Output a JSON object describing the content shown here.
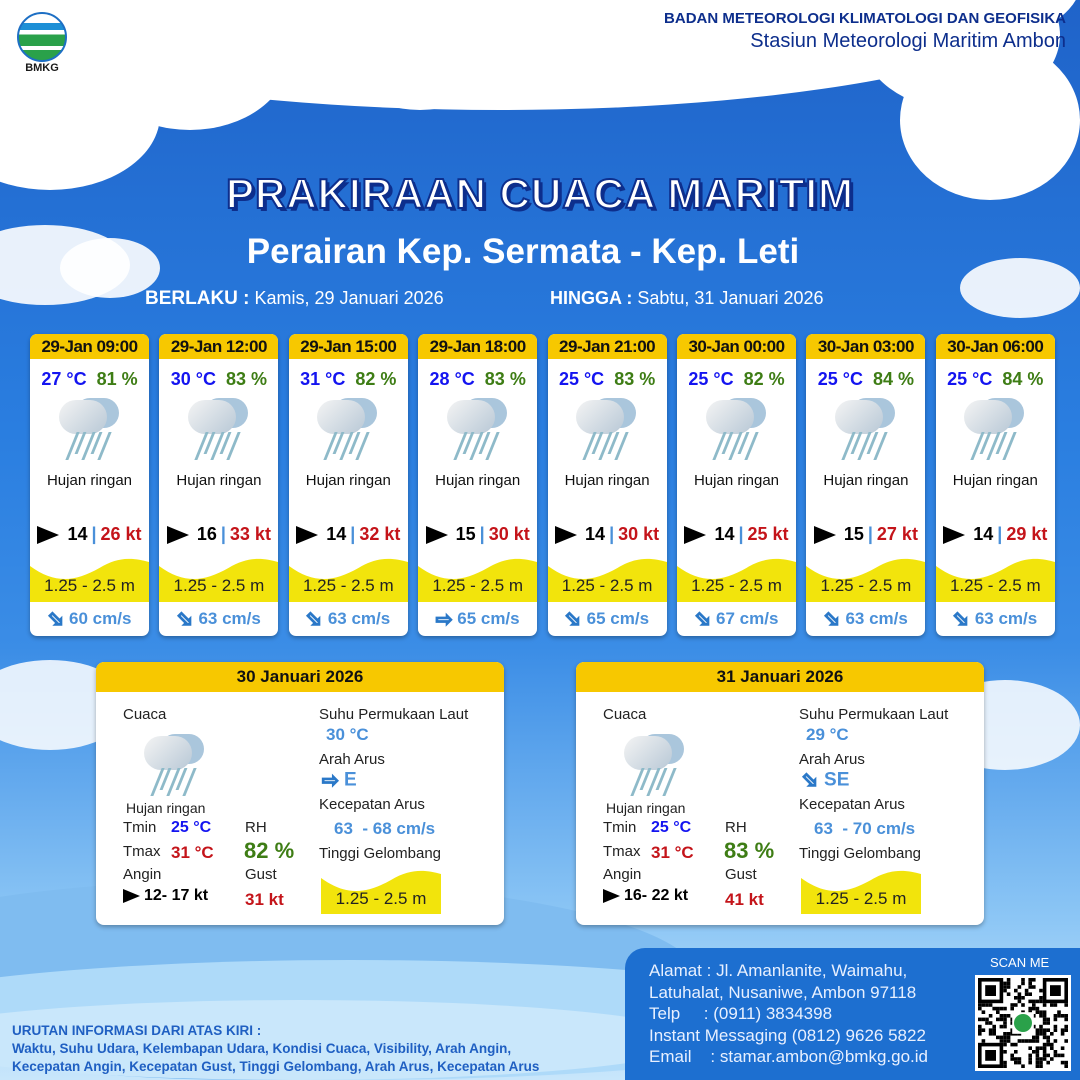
{
  "header": {
    "org_line1": "BADAN METEOROLOGI KLIMATOLOGI DAN GEOFISIKA",
    "org_line2": "Stasiun Meteorologi Maritim Ambon",
    "logo_text": "BMKG"
  },
  "title": "PRAKIRAAN CUACA MARITIM",
  "subtitle": "Perairan Kep. Sermata - Kep. Leti",
  "validity": {
    "from_label": "BERLAKU :",
    "from": "Kamis, 29 Januari 2026",
    "to_label": "HINGGA :",
    "to": "Sabtu, 31 Januari 2026"
  },
  "forecasts": [
    {
      "time": "29-Jan 09:00",
      "temp": "27 °C",
      "rh": "81 %",
      "icon": "light-rain-icon",
      "cond": "Hujan ringan",
      "wind": "14",
      "gust": "26 kt",
      "wave": "1.25 - 2.5 m",
      "current_dir": "SE",
      "current": "60 cm/s"
    },
    {
      "time": "29-Jan 12:00",
      "temp": "30 °C",
      "rh": "83 %",
      "icon": "light-rain-icon",
      "cond": "Hujan ringan",
      "wind": "16",
      "gust": "33 kt",
      "wave": "1.25 - 2.5 m",
      "current_dir": "SE",
      "current": "63 cm/s"
    },
    {
      "time": "29-Jan 15:00",
      "temp": "31 °C",
      "rh": "82 %",
      "icon": "light-rain-icon",
      "cond": "Hujan ringan",
      "wind": "14",
      "gust": "32 kt",
      "wave": "1.25 - 2.5 m",
      "current_dir": "SE",
      "current": "63 cm/s"
    },
    {
      "time": "29-Jan 18:00",
      "temp": "28 °C",
      "rh": "83 %",
      "icon": "light-rain-icon",
      "cond": "Hujan ringan",
      "wind": "15",
      "gust": "30 kt",
      "wave": "1.25 - 2.5 m",
      "current_dir": "E",
      "current": "65 cm/s"
    },
    {
      "time": "29-Jan 21:00",
      "temp": "25 °C",
      "rh": "83 %",
      "icon": "light-rain-icon",
      "cond": "Hujan ringan",
      "wind": "14",
      "gust": "30 kt",
      "wave": "1.25 - 2.5 m",
      "current_dir": "SE",
      "current": "65 cm/s"
    },
    {
      "time": "30-Jan 00:00",
      "temp": "25 °C",
      "rh": "82 %",
      "icon": "light-rain-icon",
      "cond": "Hujan ringan",
      "wind": "14",
      "gust": "25 kt",
      "wave": "1.25 - 2.5 m",
      "current_dir": "SE",
      "current": "67 cm/s"
    },
    {
      "time": "30-Jan 03:00",
      "temp": "25 °C",
      "rh": "84 %",
      "icon": "light-rain-icon",
      "cond": "Hujan ringan",
      "wind": "15",
      "gust": "27 kt",
      "wave": "1.25 - 2.5 m",
      "current_dir": "SE",
      "current": "63 cm/s"
    },
    {
      "time": "30-Jan 06:00",
      "temp": "25 °C",
      "rh": "84 %",
      "icon": "light-rain-icon",
      "cond": "Hujan ringan",
      "wind": "14",
      "gust": "29 kt",
      "wave": "1.25 - 2.5 m",
      "current_dir": "SE",
      "current": "63 cm/s"
    }
  ],
  "labels": {
    "weather": "Cuaca",
    "sst": "Suhu Permukaan Laut",
    "current_dir": "Arah Arus",
    "current_speed": "Kecepatan Arus",
    "wave": "Tinggi Gelombang",
    "tmin": "Tmin",
    "tmax": "Tmax",
    "rh": "RH",
    "wind": "Angin",
    "gust": "Gust"
  },
  "daily": [
    {
      "date": "30 Januari 2026",
      "cond": "Hujan ringan",
      "tmin": "25 °C",
      "tmax": "31 °C",
      "rh": "82 %",
      "wind": "12- 17 kt",
      "gust": "31 kt",
      "sst": "30 °C",
      "current_dir": "E",
      "current_speed": "63  - 68 cm/s",
      "wave": "1.25 - 2.5 m"
    },
    {
      "date": "31 Januari 2026",
      "cond": "Hujan ringan",
      "tmin": "25 °C",
      "tmax": "31 °C",
      "rh": "83 %",
      "wind": "16- 22 kt",
      "gust": "41 kt",
      "sst": "29 °C",
      "current_dir": "SE",
      "current_speed": "63  - 70 cm/s",
      "wave": "1.25 - 2.5 m"
    }
  ],
  "legend": {
    "title": "URUTAN INFORMASI DARI ATAS KIRI :",
    "line1": "Waktu, Suhu Udara, Kelembapan Udara, Kondisi Cuaca, Visibility, Arah Angin,",
    "line2": "Kecepatan Angin, Kecepatan Gust, Tinggi Gelombang, Arah Arus, Kecepatan Arus"
  },
  "contact": {
    "address1": "Alamat : Jl. Amanlanite, Waimahu,",
    "address2": "Latuhalat, Nusaniwe, Ambon 97118",
    "phone": "Telp     : (0911) 3834398",
    "im": "Instant Messaging (0812) 9626 5822",
    "email": "Email    : stamar.ambon@bmkg.go.id",
    "scan": "SCAN ME"
  },
  "colors": {
    "header_yellow": "#f7c800",
    "temp": "#1414f0",
    "rh": "#3e7d15",
    "gust": "#c4141a",
    "current": "#4a90d9"
  }
}
